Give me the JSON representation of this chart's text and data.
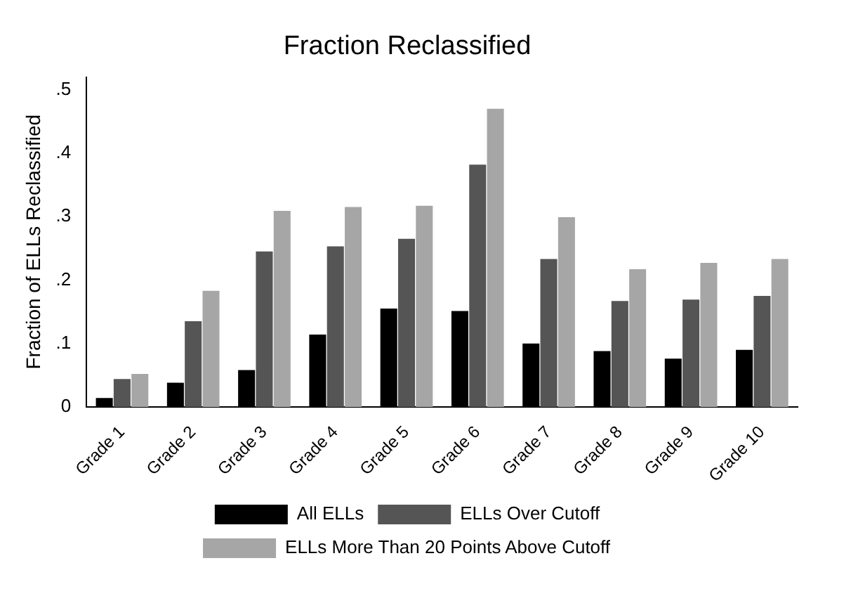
{
  "chart_data": {
    "type": "bar",
    "title": "Fraction Reclassified",
    "ylabel": "Fraction of ELLs Reclassified",
    "categories": [
      "Grade 1",
      "Grade 2",
      "Grade 3",
      "Grade 4",
      "Grade 5",
      "Grade 6",
      "Grade 7",
      "Grade 8",
      "Grade 9",
      "Grade 10"
    ],
    "series": [
      {
        "name": "All ELLs",
        "color": "#000000",
        "values": [
          0.014,
          0.038,
          0.058,
          0.114,
          0.155,
          0.151,
          0.1,
          0.088,
          0.076,
          0.09
        ]
      },
      {
        "name": "ELLs Over Cutoff",
        "color": "#555555",
        "values": [
          0.044,
          0.135,
          0.245,
          0.253,
          0.265,
          0.382,
          0.233,
          0.167,
          0.169,
          0.175
        ]
      },
      {
        "name": "ELLs More Than 20 Points Above Cutoff",
        "color": "#a6a6a6",
        "values": [
          0.052,
          0.183,
          0.309,
          0.315,
          0.317,
          0.47,
          0.299,
          0.217,
          0.227,
          0.233
        ]
      }
    ],
    "ylim": [
      0,
      0.52
    ],
    "yticks": [
      0,
      {
        "value": 0.1,
        "label": ".1"
      },
      {
        "value": 0.2,
        "label": ".2"
      },
      {
        "value": 0.3,
        "label": ".3"
      },
      {
        "value": 0.4,
        "label": ".4"
      },
      {
        "value": 0.5,
        "label": ".5"
      }
    ],
    "grid": false,
    "legend": "bottom"
  }
}
